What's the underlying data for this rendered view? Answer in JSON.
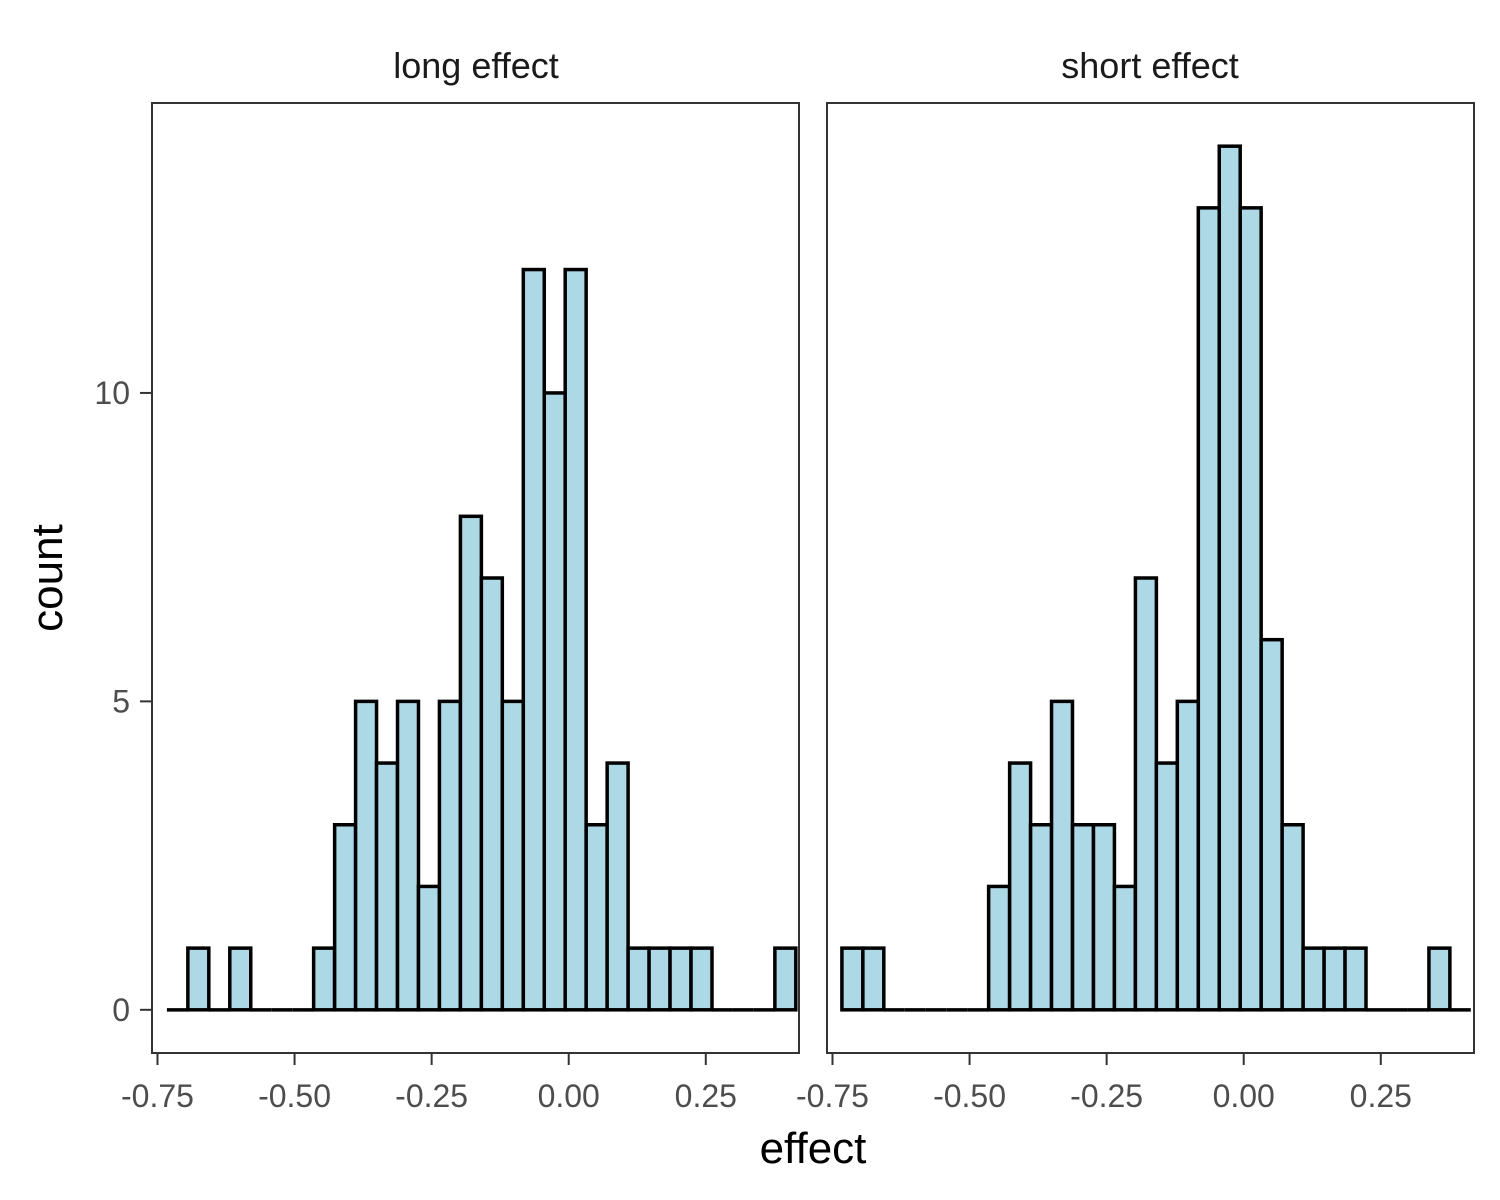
{
  "chart_data": {
    "type": "bar",
    "xlabel": "effect",
    "ylabel": "count",
    "xlim": [
      -0.76,
      0.42
    ],
    "ylim": [
      -0.7,
      14.7
    ],
    "x_ticks": [
      -0.75,
      -0.5,
      -0.25,
      0.0,
      0.25
    ],
    "x_tick_labels": [
      "-0.75",
      "-0.50",
      "-0.25",
      "0.00",
      "0.25"
    ],
    "y_ticks": [
      0,
      5,
      10
    ],
    "y_tick_labels": [
      "0",
      "5",
      "10"
    ],
    "bar_fill": "#add8e6",
    "bar_stroke": "#000000",
    "grid": false,
    "panels": [
      {
        "title": "long effect",
        "bin_width": 0.0382,
        "bins": [
          {
            "x": -0.7137,
            "count": 0
          },
          {
            "x": -0.6755,
            "count": 1
          },
          {
            "x": -0.6373,
            "count": 0
          },
          {
            "x": -0.599,
            "count": 1
          },
          {
            "x": -0.5608,
            "count": 0
          },
          {
            "x": -0.5225,
            "count": 0
          },
          {
            "x": -0.4843,
            "count": 0
          },
          {
            "x": -0.4461,
            "count": 1
          },
          {
            "x": -0.4078,
            "count": 3
          },
          {
            "x": -0.3696,
            "count": 5
          },
          {
            "x": -0.3314,
            "count": 4
          },
          {
            "x": -0.2931,
            "count": 5
          },
          {
            "x": -0.2549,
            "count": 2
          },
          {
            "x": -0.2167,
            "count": 5
          },
          {
            "x": -0.1784,
            "count": 8
          },
          {
            "x": -0.1402,
            "count": 7
          },
          {
            "x": -0.102,
            "count": 5
          },
          {
            "x": -0.0637,
            "count": 12
          },
          {
            "x": -0.0255,
            "count": 10
          },
          {
            "x": 0.0127,
            "count": 12
          },
          {
            "x": 0.051,
            "count": 3
          },
          {
            "x": 0.0892,
            "count": 4
          },
          {
            "x": 0.1275,
            "count": 1
          },
          {
            "x": 0.1657,
            "count": 1
          },
          {
            "x": 0.2039,
            "count": 1
          },
          {
            "x": 0.2422,
            "count": 1
          },
          {
            "x": 0.2804,
            "count": 0
          },
          {
            "x": 0.3186,
            "count": 0
          },
          {
            "x": 0.3569,
            "count": 0
          },
          {
            "x": 0.3951,
            "count": 1
          }
        ]
      },
      {
        "title": "short effect",
        "bin_width": 0.0382,
        "bins": [
          {
            "x": -0.7137,
            "count": 1
          },
          {
            "x": -0.6755,
            "count": 1
          },
          {
            "x": -0.6373,
            "count": 0
          },
          {
            "x": -0.599,
            "count": 0
          },
          {
            "x": -0.5608,
            "count": 0
          },
          {
            "x": -0.5225,
            "count": 0
          },
          {
            "x": -0.4843,
            "count": 0
          },
          {
            "x": -0.4461,
            "count": 2
          },
          {
            "x": -0.4078,
            "count": 4
          },
          {
            "x": -0.3696,
            "count": 3
          },
          {
            "x": -0.3314,
            "count": 5
          },
          {
            "x": -0.2931,
            "count": 3
          },
          {
            "x": -0.2549,
            "count": 3
          },
          {
            "x": -0.2167,
            "count": 2
          },
          {
            "x": -0.1784,
            "count": 7
          },
          {
            "x": -0.1402,
            "count": 4
          },
          {
            "x": -0.102,
            "count": 5
          },
          {
            "x": -0.0637,
            "count": 13
          },
          {
            "x": -0.0255,
            "count": 14
          },
          {
            "x": 0.0127,
            "count": 13
          },
          {
            "x": 0.051,
            "count": 6
          },
          {
            "x": 0.0892,
            "count": 3
          },
          {
            "x": 0.1275,
            "count": 1
          },
          {
            "x": 0.1657,
            "count": 1
          },
          {
            "x": 0.2039,
            "count": 1
          },
          {
            "x": 0.2422,
            "count": 0
          },
          {
            "x": 0.2804,
            "count": 0
          },
          {
            "x": 0.3186,
            "count": 0
          },
          {
            "x": 0.3569,
            "count": 1
          },
          {
            "x": 0.3951,
            "count": 0
          }
        ]
      }
    ]
  }
}
